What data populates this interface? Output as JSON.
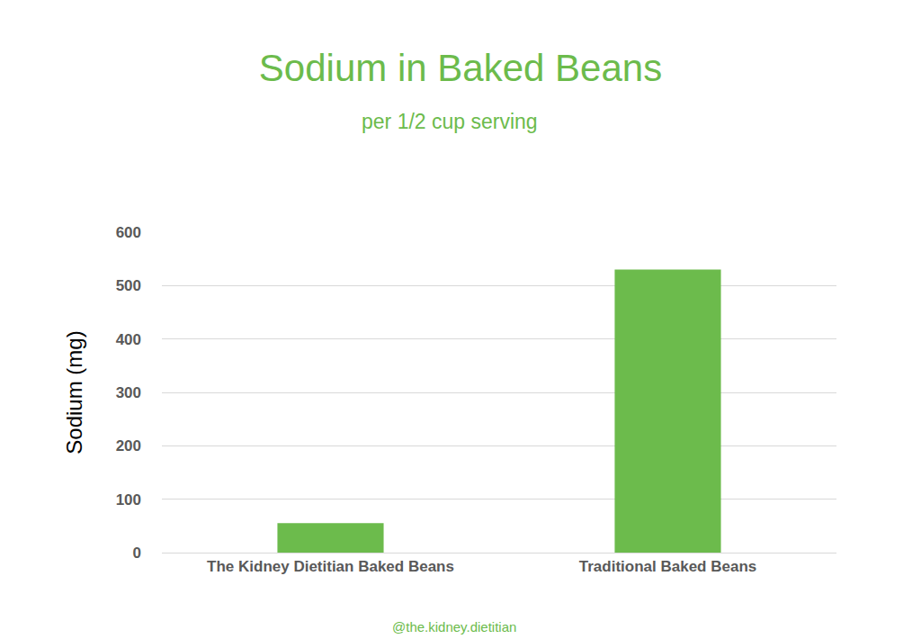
{
  "chart_data": {
    "type": "bar",
    "title": "Sodium in Baked Beans",
    "subtitle": "per 1/2 cup serving",
    "y_label": "Sodium (mg)",
    "categories": [
      "The Kidney Dietitian Baked Beans",
      "Traditional Baked Beans"
    ],
    "values": [
      55,
      530
    ],
    "color": "#6cbb4c",
    "ylim": [
      0,
      600
    ],
    "yticks": [
      0,
      100,
      200,
      300,
      400,
      500,
      600
    ],
    "grid": true,
    "annotations": [
      "@the.kidney.dietitian"
    ]
  }
}
